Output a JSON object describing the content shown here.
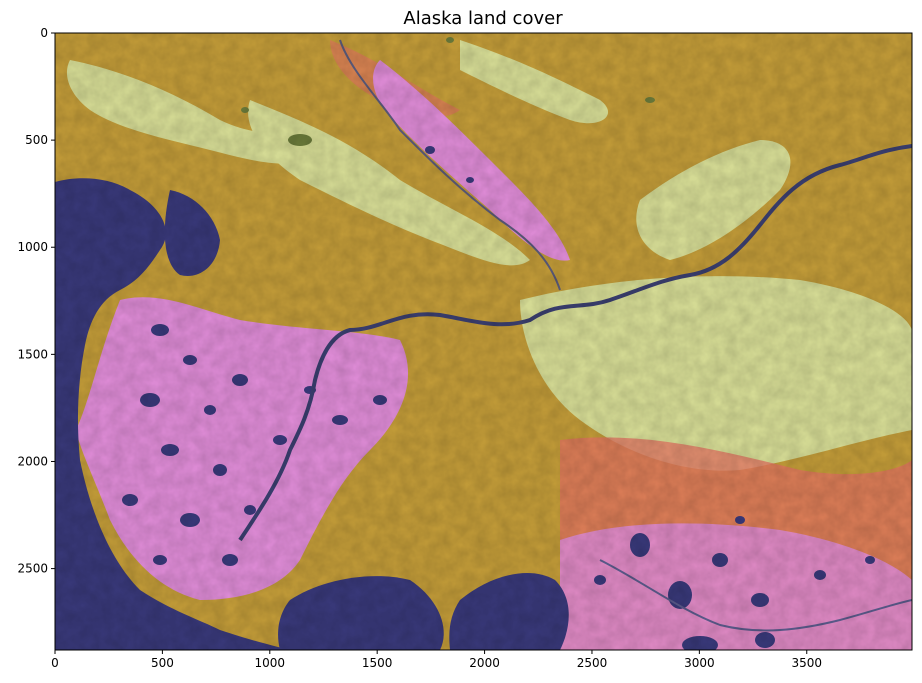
{
  "title": "Alaska land cover",
  "axes": {
    "x_ticks": [
      0,
      500,
      1000,
      1500,
      2000,
      2500,
      3000,
      3500
    ],
    "y_ticks": [
      0,
      500,
      1000,
      1500,
      2000,
      2500
    ],
    "xlim": [
      0,
      3990
    ],
    "ylim": [
      2880,
      0
    ]
  },
  "palette": {
    "water": "#383878",
    "shrub_gold": "#c09a38",
    "upland_pale": "#d4da94",
    "wetland_pink": "#dc8ad4",
    "herb_salmon": "#e07060",
    "forest_green": "#6a7a3a",
    "river": "#3a3e6e"
  }
}
